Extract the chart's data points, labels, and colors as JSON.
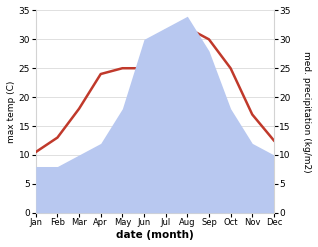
{
  "months": [
    "Jan",
    "Feb",
    "Mar",
    "Apr",
    "May",
    "Jun",
    "Jul",
    "Aug",
    "Sep",
    "Oct",
    "Nov",
    "Dec"
  ],
  "temp": [
    10.5,
    13,
    18,
    24,
    25,
    25,
    31.5,
    32,
    30,
    25,
    17,
    12.5
  ],
  "precip": [
    8,
    8,
    10,
    12,
    18,
    30,
    32,
    34,
    28,
    18,
    12,
    10
  ],
  "temp_color": "#c0392b",
  "precip_fill_color": "#b8c8f0",
  "bg_color": "#ffffff",
  "plot_bg_color": "#ffffff",
  "ylim_left": [
    0,
    35
  ],
  "ylim_right": [
    0,
    35
  ],
  "xlabel": "date (month)",
  "ylabel_left": "max temp (C)",
  "ylabel_right": "med. precipitation (kg/m2)",
  "yticks": [
    0,
    5,
    10,
    15,
    20,
    25,
    30,
    35
  ],
  "linewidth": 1.8
}
